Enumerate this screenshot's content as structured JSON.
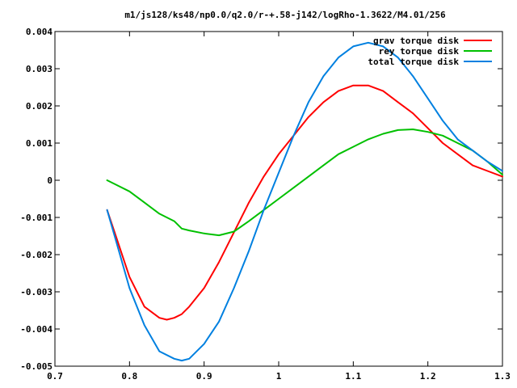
{
  "chart_data": {
    "type": "line",
    "title": "m1/js128/ks48/np0.0/q2.0/r-+.58-j142/logRho-1.3622/M4.01/256",
    "xlabel": "",
    "ylabel": "",
    "xlim": [
      0.7,
      1.3
    ],
    "ylim": [
      -0.005,
      0.004
    ],
    "xticks": [
      0.7,
      0.8,
      0.9,
      1,
      1.1,
      1.2,
      1.3
    ],
    "xtick_labels": [
      "0.7",
      "0.8",
      "0.9",
      "1",
      "1.1",
      "1.2",
      "1.3"
    ],
    "yticks": [
      -0.005,
      -0.004,
      -0.003,
      -0.002,
      -0.001,
      0,
      0.001,
      0.002,
      0.003,
      0.004
    ],
    "ytick_labels": [
      "-0.005",
      "-0.004",
      "-0.003",
      "-0.002",
      "-0.001",
      "0",
      "0.001",
      "0.002",
      "0.003",
      "0.004"
    ],
    "grid": false,
    "legend_position": "top-right",
    "series": [
      {
        "name": "grav torque disk",
        "color": "#ff0000",
        "x": [
          0.77,
          0.78,
          0.8,
          0.82,
          0.84,
          0.85,
          0.86,
          0.87,
          0.88,
          0.9,
          0.92,
          0.94,
          0.96,
          0.98,
          1.0,
          1.02,
          1.04,
          1.06,
          1.08,
          1.1,
          1.12,
          1.14,
          1.16,
          1.18,
          1.2,
          1.22,
          1.24,
          1.26,
          1.28,
          1.3
        ],
        "y": [
          -0.0008,
          -0.0014,
          -0.0026,
          -0.0034,
          -0.0037,
          -0.00375,
          -0.0037,
          -0.0036,
          -0.0034,
          -0.0029,
          -0.0022,
          -0.0014,
          -0.0006,
          0.0001,
          0.0007,
          0.0012,
          0.0017,
          0.0021,
          0.0024,
          0.00255,
          0.00255,
          0.0024,
          0.0021,
          0.0018,
          0.0014,
          0.001,
          0.0007,
          0.0004,
          0.00025,
          0.0001
        ]
      },
      {
        "name": "rey torque disk",
        "color": "#00c000",
        "x": [
          0.77,
          0.78,
          0.8,
          0.82,
          0.84,
          0.86,
          0.87,
          0.88,
          0.9,
          0.92,
          0.94,
          0.96,
          0.98,
          1.0,
          1.02,
          1.04,
          1.06,
          1.08,
          1.1,
          1.12,
          1.14,
          1.16,
          1.18,
          1.2,
          1.22,
          1.24,
          1.26,
          1.28,
          1.3
        ],
        "y": [
          0.0,
          -0.0001,
          -0.0003,
          -0.0006,
          -0.0009,
          -0.0011,
          -0.0013,
          -0.00135,
          -0.00143,
          -0.00148,
          -0.00138,
          -0.0011,
          -0.0008,
          -0.0005,
          -0.0002,
          0.0001,
          0.0004,
          0.0007,
          0.0009,
          0.0011,
          0.00125,
          0.00135,
          0.00137,
          0.0013,
          0.0012,
          0.001,
          0.0008,
          0.0005,
          0.00015
        ]
      },
      {
        "name": "total torque disk",
        "color": "#0080e0",
        "x": [
          0.77,
          0.78,
          0.8,
          0.82,
          0.84,
          0.86,
          0.87,
          0.88,
          0.9,
          0.92,
          0.94,
          0.96,
          0.98,
          1.0,
          1.02,
          1.04,
          1.06,
          1.08,
          1.1,
          1.12,
          1.14,
          1.16,
          1.18,
          1.2,
          1.22,
          1.24,
          1.26,
          1.28,
          1.3
        ],
        "y": [
          -0.0008,
          -0.0015,
          -0.0029,
          -0.0039,
          -0.0046,
          -0.0048,
          -0.00485,
          -0.0048,
          -0.0044,
          -0.0038,
          -0.0029,
          -0.0019,
          -0.0008,
          0.0002,
          0.0012,
          0.0021,
          0.0028,
          0.0033,
          0.0036,
          0.0037,
          0.0036,
          0.0033,
          0.0028,
          0.0022,
          0.0016,
          0.0011,
          0.0008,
          0.0005,
          0.00025
        ]
      }
    ]
  }
}
